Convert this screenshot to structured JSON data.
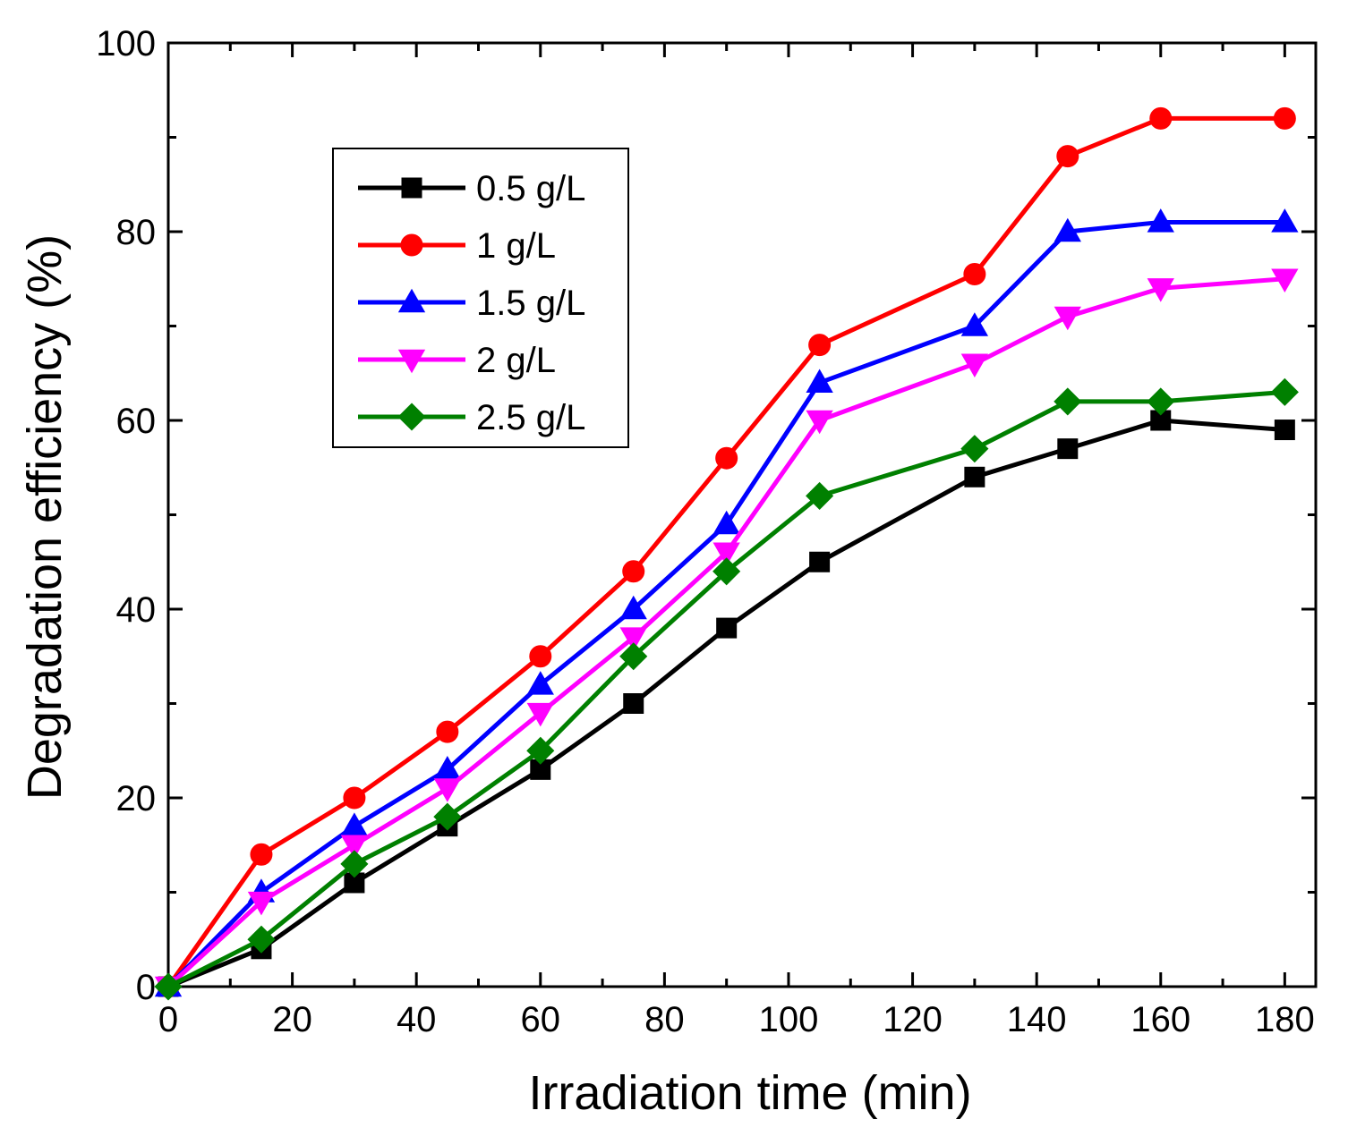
{
  "chart_data": {
    "type": "line",
    "xlabel": "Irradiation time (min)",
    "ylabel": "Degradation efficiency (%)",
    "xlim": [
      0,
      185
    ],
    "ylim": [
      0,
      100
    ],
    "xticks": [
      0,
      20,
      40,
      60,
      80,
      100,
      120,
      140,
      160,
      180
    ],
    "yticks": [
      0,
      20,
      40,
      60,
      80,
      100
    ],
    "x": [
      0,
      15,
      30,
      45,
      60,
      75,
      90,
      105,
      130,
      145,
      160,
      180
    ],
    "legend_position": "top-left",
    "grid": false,
    "series": [
      {
        "name": "0.5 g/L",
        "color": "#000000",
        "marker": "square",
        "values": [
          0,
          4,
          11,
          17,
          23,
          30,
          38,
          45,
          54,
          57,
          60,
          59
        ]
      },
      {
        "name": "1 g/L",
        "color": "#ff0000",
        "marker": "circle",
        "values": [
          0,
          14,
          20,
          27,
          35,
          44,
          56,
          68,
          75.5,
          88,
          92,
          92
        ]
      },
      {
        "name": "1.5 g/L",
        "color": "#0000ff",
        "marker": "triangle-up",
        "values": [
          0,
          10,
          17,
          23,
          32,
          40,
          49,
          64,
          70,
          80,
          81,
          81
        ]
      },
      {
        "name": "2 g/L",
        "color": "#ff00ff",
        "marker": "triangle-down",
        "values": [
          0,
          9,
          15,
          21,
          29,
          37,
          46,
          60,
          66,
          71,
          74,
          75
        ]
      },
      {
        "name": "2.5 g/L",
        "color": "#008000",
        "marker": "diamond",
        "values": [
          0,
          5,
          13,
          18,
          25,
          35,
          44,
          52,
          57,
          62,
          62,
          63
        ]
      }
    ]
  }
}
